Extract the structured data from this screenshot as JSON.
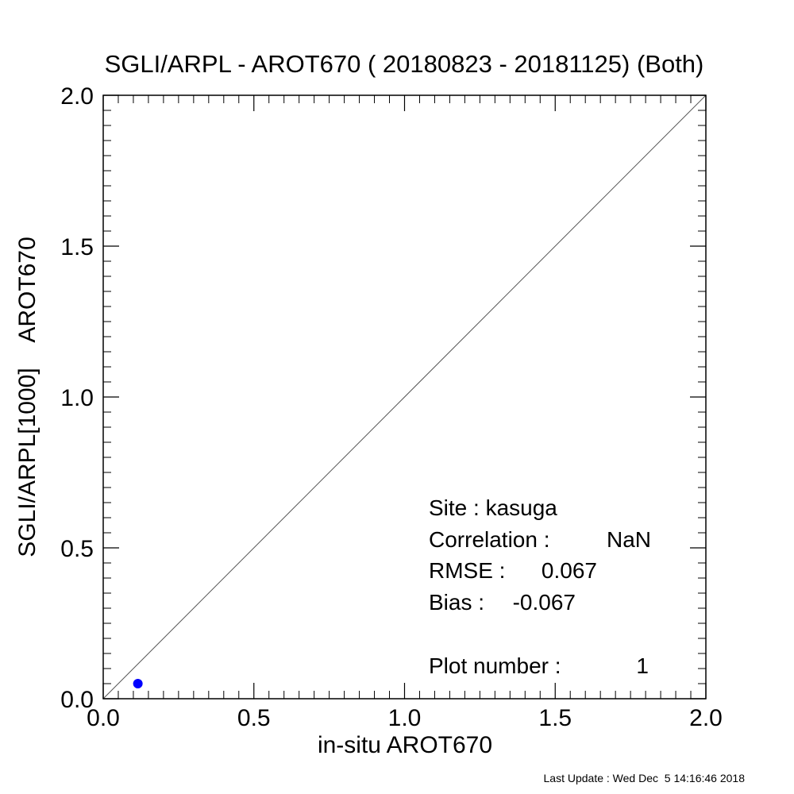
{
  "chart_data": {
    "type": "scatter",
    "title": "SGLI/ARPL - AROT670 ( 20180823 - 20181125) (Both)",
    "xlabel": "in-situ AROT670",
    "ylabel": "SGLI/ARPL[1000]    AROT670",
    "xlim": [
      0.0,
      2.0
    ],
    "ylim": [
      0.0,
      2.0
    ],
    "major_ticks": [
      0.0,
      0.5,
      1.0,
      1.5,
      2.0
    ],
    "tick_labels": [
      "0.0",
      "0.5",
      "1.0",
      "1.5",
      "2.0"
    ],
    "minor_tick_step": 0.05,
    "grid": false,
    "reference_line": "1:1",
    "point_color": "#0000ff",
    "points": [
      {
        "x": 0.115,
        "y": 0.05
      }
    ],
    "annotations": {
      "site": "Site : kasuga",
      "correlation_label": "Correlation :",
      "correlation_value": "NaN",
      "rmse_label": "RMSE :",
      "rmse_value": "0.067",
      "bias_label": "Bias :",
      "bias_value": "-0.067",
      "plot_number_label": "Plot number :",
      "plot_number_value": "1"
    }
  },
  "footer": "Last Update : Wed Dec  5 14:16:46 2018"
}
